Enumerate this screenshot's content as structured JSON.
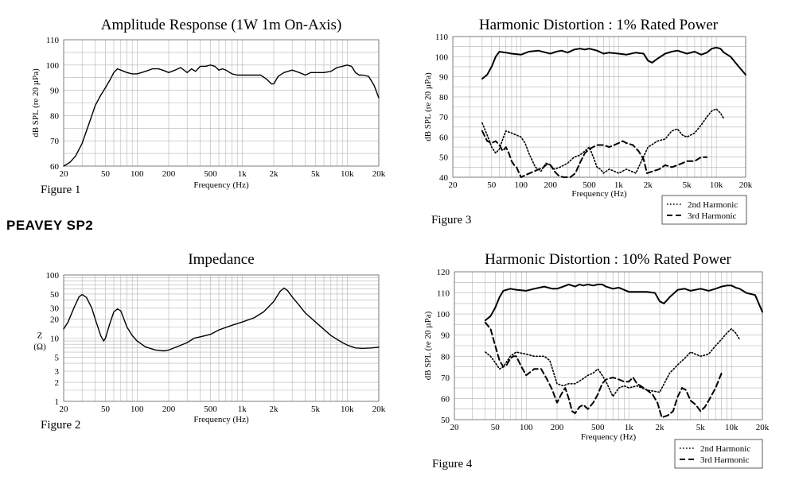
{
  "brand": "PEAVEY SP2",
  "figures": [
    "Figure 1",
    "Figure 2",
    "Figure 3",
    "Figure 4"
  ],
  "chart_data": [
    {
      "id": "amplitude",
      "type": "line",
      "title": "Amplitude Response   (1W 1m  On-Axis)",
      "xlabel": "Frequency (Hz)",
      "ylabel": "dB SPL (re 20 µPa)",
      "xscale": "log",
      "xlim": [
        20,
        20000
      ],
      "ylim": [
        60,
        110
      ],
      "xticks": [
        20,
        50,
        100,
        200,
        500,
        1000,
        2000,
        5000,
        10000,
        20000
      ],
      "xticklabels": [
        "20",
        "50",
        "100",
        "200",
        "500",
        "1k",
        "2k",
        "5k",
        "10k",
        "20k"
      ],
      "yticks": [
        60,
        70,
        80,
        90,
        100,
        110
      ],
      "yticklabels": [
        "60",
        "70",
        "80",
        "90",
        "100",
        "110"
      ],
      "grid": true,
      "series": [
        {
          "style": "solid",
          "width": 1.4,
          "x": [
            20,
            23,
            26,
            30,
            35,
            40,
            45,
            50,
            55,
            60,
            65,
            70,
            80,
            90,
            100,
            120,
            140,
            160,
            180,
            200,
            230,
            260,
            300,
            330,
            360,
            400,
            450,
            500,
            550,
            600,
            650,
            700,
            800,
            900,
            1000,
            1200,
            1500,
            1700,
            1900,
            2000,
            2200,
            2500,
            3000,
            3500,
            4000,
            4500,
            5000,
            6000,
            7000,
            8000,
            9000,
            10000,
            11000,
            12000,
            13000,
            14000,
            16000,
            18000,
            20000
          ],
          "y": [
            60,
            61.5,
            64,
            69,
            77,
            84,
            88,
            91,
            94,
            97,
            98.5,
            98,
            97,
            96.5,
            96.5,
            97.5,
            98.5,
            98.5,
            97.8,
            97,
            98,
            99,
            97,
            98.5,
            97.5,
            99.5,
            99.5,
            100,
            99.5,
            98,
            98.5,
            98,
            96.5,
            96,
            96,
            96,
            96,
            94.5,
            92.5,
            92.5,
            95.5,
            97,
            98,
            97,
            96,
            97,
            97,
            97,
            97.5,
            99,
            99.5,
            100,
            99.5,
            97,
            96,
            96,
            95.5,
            92,
            87
          ]
        }
      ]
    },
    {
      "id": "impedance",
      "type": "line",
      "title": "Impedance",
      "xlabel": "Frequency (Hz)",
      "ylabel": "Z (Ω)",
      "xscale": "log",
      "yscale": "log",
      "xlim": [
        20,
        20000
      ],
      "ylim": [
        1,
        100
      ],
      "xticks": [
        20,
        50,
        100,
        200,
        500,
        1000,
        2000,
        5000,
        10000,
        20000
      ],
      "xticklabels": [
        "20",
        "50",
        "100",
        "200",
        "500",
        "1k",
        "2k",
        "5k",
        "10k",
        "20k"
      ],
      "yticks": [
        1,
        2,
        3,
        5,
        10,
        20,
        30,
        50,
        100
      ],
      "yticklabels": [
        "1",
        "2",
        "3",
        "5",
        "10",
        "20",
        "30",
        "50",
        "100"
      ],
      "grid": true,
      "series": [
        {
          "style": "solid",
          "width": 1.4,
          "x": [
            20,
            22,
            25,
            28,
            30,
            33,
            37,
            40,
            45,
            48,
            50,
            55,
            60,
            65,
            70,
            75,
            80,
            90,
            100,
            120,
            150,
            180,
            200,
            250,
            300,
            350,
            400,
            500,
            600,
            800,
            1000,
            1300,
            1600,
            2000,
            2300,
            2500,
            2700,
            3000,
            3500,
            4000,
            5000,
            7000,
            9000,
            10000,
            12000,
            14000,
            17000,
            20000
          ],
          "y": [
            14,
            18,
            30,
            45,
            49,
            44,
            30,
            20,
            11,
            9,
            10,
            17,
            26,
            29,
            27,
            20,
            15,
            11,
            9,
            7.3,
            6.5,
            6.3,
            6.5,
            7.5,
            8.5,
            10,
            10.5,
            11.5,
            13.5,
            16,
            18,
            21,
            26,
            38,
            55,
            62,
            57,
            45,
            33,
            25,
            18,
            11,
            8.5,
            7.8,
            7,
            6.9,
            7,
            7.2
          ]
        }
      ]
    },
    {
      "id": "hd1",
      "type": "line",
      "title": "Harmonic Distortion :  1% Rated Power",
      "xlabel": "Frequency (Hz)",
      "ylabel": "dB SPL (re 20 µPa)",
      "xscale": "log",
      "xlim": [
        20,
        20000
      ],
      "ylim": [
        40,
        110
      ],
      "xticks": [
        20,
        50,
        100,
        200,
        500,
        1000,
        2000,
        5000,
        10000,
        20000
      ],
      "xticklabels": [
        "20",
        "50",
        "100",
        "200",
        "500",
        "1k",
        "2k",
        "5k",
        "10k",
        "20k"
      ],
      "yticks": [
        40,
        50,
        60,
        70,
        80,
        90,
        100,
        110
      ],
      "yticklabels": [
        "40",
        "50",
        "60",
        "70",
        "80",
        "90",
        "100",
        "110"
      ],
      "grid": true,
      "legend": {
        "position": "bottom-right",
        "entries": [
          "2nd Harmonic",
          "3rd Harmonic"
        ]
      },
      "series": [
        {
          "style": "solid",
          "width": 2,
          "x": [
            40,
            45,
            50,
            55,
            60,
            70,
            80,
            100,
            120,
            150,
            180,
            200,
            230,
            260,
            300,
            350,
            400,
            450,
            500,
            600,
            700,
            800,
            1000,
            1200,
            1500,
            1800,
            2000,
            2200,
            2500,
            3000,
            3500,
            4000,
            5000,
            6000,
            7000,
            8000,
            9000,
            10000,
            11000,
            12000,
            14000,
            17000,
            20000
          ],
          "y": [
            89,
            91,
            95,
            100,
            102.5,
            102,
            101.5,
            101,
            102.5,
            103,
            102,
            101.5,
            102.5,
            103,
            102,
            103.5,
            104,
            103.5,
            104,
            103,
            101.5,
            102,
            101.5,
            101,
            102,
            101.5,
            98,
            97,
            99,
            101.5,
            102.5,
            103,
            101.5,
            102.5,
            101,
            102,
            104,
            104.5,
            104,
            102,
            100,
            95,
            91
          ]
        },
        {
          "style": "dotted",
          "width": 1.6,
          "x": [
            40,
            45,
            50,
            55,
            60,
            65,
            70,
            80,
            100,
            110,
            120,
            140,
            160,
            180,
            200,
            220,
            250,
            300,
            350,
            400,
            450,
            500,
            550,
            600,
            650,
            700,
            800,
            900,
            1000,
            1200,
            1500,
            2000,
            2500,
            3000,
            3500,
            4000,
            4500,
            5000,
            6000,
            7000,
            8000,
            9000,
            10000,
            11000,
            12000
          ],
          "y": [
            67,
            61,
            55,
            52,
            54,
            59,
            63,
            62,
            60,
            57,
            52,
            45,
            43,
            47,
            46,
            44,
            45,
            47,
            50,
            51,
            53,
            55,
            50,
            45,
            44,
            42,
            44,
            43,
            42,
            44,
            42,
            55,
            58,
            59,
            63,
            64,
            61,
            60,
            62,
            66,
            70,
            73,
            74,
            72,
            69
          ]
        },
        {
          "style": "dashed",
          "width": 2,
          "x": [
            40,
            45,
            50,
            55,
            60,
            65,
            70,
            75,
            80,
            85,
            90,
            100,
            110,
            170,
            190,
            200,
            220,
            240,
            270,
            320,
            360,
            400,
            450,
            500,
            600,
            700,
            800,
            900,
            1000,
            1100,
            1200,
            1400,
            1600,
            1800,
            1950,
            2600,
            3000,
            3500,
            4000,
            4500,
            5000,
            6000,
            7000,
            8000
          ],
          "y": [
            63,
            58,
            57,
            58,
            56,
            53,
            55,
            52,
            48,
            46,
            45,
            40,
            41,
            45,
            47,
            46,
            43,
            41,
            40,
            40,
            42,
            47,
            52,
            54,
            56,
            56,
            55,
            56,
            57,
            58,
            57,
            56,
            53,
            49,
            42,
            44,
            46,
            45,
            46,
            47,
            48,
            48,
            50,
            50
          ]
        }
      ]
    },
    {
      "id": "hd10",
      "type": "line",
      "title": "Harmonic Distortion :  10% Rated Power",
      "xlabel": "Frequency (Hz)",
      "ylabel": "dB SPL (re 20 µPa)",
      "xscale": "log",
      "xlim": [
        20,
        20000
      ],
      "ylim": [
        50,
        120
      ],
      "xticks": [
        20,
        50,
        100,
        200,
        500,
        1000,
        2000,
        5000,
        10000,
        20000
      ],
      "xticklabels": [
        "20",
        "50",
        "100",
        "200",
        "500",
        "1k",
        "2k",
        "5k",
        "10k",
        "20k"
      ],
      "yticks": [
        50,
        60,
        70,
        80,
        90,
        100,
        110,
        120
      ],
      "yticklabels": [
        "50",
        "60",
        "70",
        "80",
        "90",
        "100",
        "110",
        "120"
      ],
      "grid": true,
      "legend": {
        "position": "bottom-right",
        "entries": [
          "2nd Harmonic",
          "3rd Harmonic"
        ]
      },
      "series": [
        {
          "style": "solid",
          "width": 2,
          "x": [
            40,
            45,
            50,
            55,
            60,
            70,
            80,
            100,
            120,
            150,
            180,
            200,
            230,
            260,
            300,
            330,
            360,
            400,
            450,
            500,
            550,
            600,
            700,
            800,
            1000,
            1200,
            1500,
            1800,
            2000,
            2200,
            2500,
            3000,
            3500,
            4000,
            5000,
            6000,
            7000,
            8000,
            9000,
            10000,
            11000,
            12000,
            14000,
            17000,
            20000
          ],
          "y": [
            97,
            99,
            103,
            108,
            111,
            112,
            111.5,
            111,
            112,
            113,
            112,
            112,
            113,
            114,
            113,
            114,
            113.5,
            114,
            113.5,
            114,
            114,
            113,
            112,
            112.5,
            110.5,
            110.5,
            110.5,
            110,
            106,
            105,
            108,
            111.5,
            112,
            111,
            112,
            111,
            112,
            113,
            113.5,
            113.5,
            112.5,
            112,
            110,
            109,
            101
          ]
        },
        {
          "style": "dotted",
          "width": 1.6,
          "x": [
            40,
            45,
            50,
            55,
            60,
            70,
            80,
            100,
            120,
            150,
            170,
            200,
            230,
            260,
            300,
            350,
            400,
            450,
            500,
            550,
            600,
            700,
            800,
            900,
            1000,
            1200,
            1500,
            2000,
            2500,
            3000,
            3500,
            4000,
            5000,
            6000,
            7000,
            8000,
            9000,
            10000,
            11000,
            12000
          ],
          "y": [
            82,
            80,
            77,
            74,
            75,
            80,
            82,
            81,
            80,
            80,
            78,
            67,
            66,
            67,
            67,
            69,
            71,
            72,
            74,
            71,
            68,
            61,
            65,
            66,
            65,
            66,
            64,
            63,
            72,
            76,
            79,
            82,
            80,
            81,
            85,
            88,
            91,
            93,
            91,
            88
          ]
        },
        {
          "style": "dashed",
          "width": 2,
          "x": [
            40,
            45,
            50,
            55,
            60,
            65,
            70,
            75,
            80,
            90,
            100,
            120,
            140,
            160,
            180,
            200,
            220,
            240,
            260,
            280,
            300,
            330,
            360,
            400,
            450,
            500,
            550,
            600,
            700,
            800,
            900,
            1000,
            1100,
            1200,
            1300,
            1500,
            1700,
            1900,
            2100,
            2400,
            2700,
            3000,
            3300,
            3600,
            4000,
            4500,
            5000,
            5500,
            6000,
            7000,
            8000
          ],
          "y": [
            96,
            93,
            85,
            78,
            75,
            76,
            79,
            80,
            80,
            75,
            71,
            74,
            74,
            69,
            64,
            58,
            62,
            65,
            60,
            54,
            53,
            56,
            57,
            55,
            58,
            62,
            67,
            69,
            70,
            69,
            68,
            68,
            70,
            67,
            66,
            64,
            62,
            58,
            51,
            52,
            54,
            61,
            65,
            64,
            59,
            57,
            54,
            56,
            59,
            65,
            72
          ]
        }
      ]
    }
  ]
}
